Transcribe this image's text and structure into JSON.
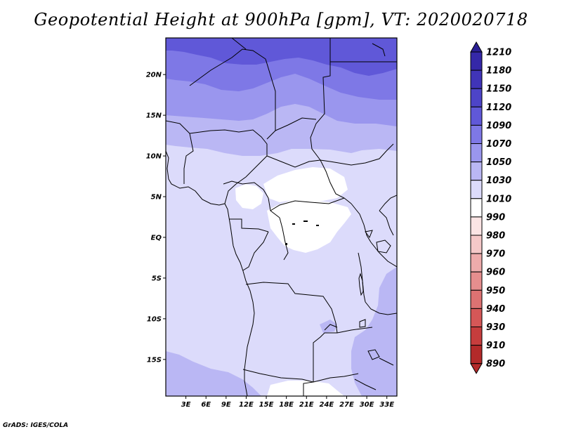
{
  "title": "Geopotential Height at 900hPa [gpm], VT: 2020020718",
  "credit": "GrADS: IGES/COLA",
  "map": {
    "lon_range": [
      0,
      34.5
    ],
    "lat_range": [
      -19.5,
      24.5
    ],
    "lat_ticks": [
      {
        "value": 20,
        "label": "20N"
      },
      {
        "value": 15,
        "label": "15N"
      },
      {
        "value": 10,
        "label": "10N"
      },
      {
        "value": 5,
        "label": "5N"
      },
      {
        "value": 0,
        "label": "EQ"
      },
      {
        "value": -5,
        "label": "5S"
      },
      {
        "value": -10,
        "label": "10S"
      },
      {
        "value": -15,
        "label": "15S"
      }
    ],
    "lon_ticks": [
      {
        "value": 3,
        "label": "3E"
      },
      {
        "value": 6,
        "label": "6E"
      },
      {
        "value": 9,
        "label": "9E"
      },
      {
        "value": 12,
        "label": "12E"
      },
      {
        "value": 15,
        "label": "15E"
      },
      {
        "value": 18,
        "label": "18E"
      },
      {
        "value": 21,
        "label": "21E"
      },
      {
        "value": 24,
        "label": "24E"
      },
      {
        "value": 27,
        "label": "27E"
      },
      {
        "value": 30,
        "label": "30E"
      },
      {
        "value": 33,
        "label": "33E"
      }
    ]
  },
  "colorbar": {
    "levels": [
      {
        "value": "1210",
        "color": "#2a1f94"
      },
      {
        "value": "1180",
        "color": "#3528a8"
      },
      {
        "value": "1150",
        "color": "#4034b8"
      },
      {
        "value": "1120",
        "color": "#4d44c8"
      },
      {
        "value": "1090",
        "color": "#6058d8"
      },
      {
        "value": "1070",
        "color": "#7e78e6"
      },
      {
        "value": "1050",
        "color": "#9a96ee"
      },
      {
        "value": "1030",
        "color": "#bab7f4"
      },
      {
        "value": "1010",
        "color": "#dcdbfb"
      },
      {
        "value": "990",
        "color": "#ffffff"
      },
      {
        "value": "980",
        "color": "#fbe4e4"
      },
      {
        "value": "970",
        "color": "#f5c8c8"
      },
      {
        "value": "960",
        "color": "#eeabab"
      },
      {
        "value": "950",
        "color": "#e68e8e"
      },
      {
        "value": "940",
        "color": "#dd7272"
      },
      {
        "value": "930",
        "color": "#d55757"
      },
      {
        "value": "910",
        "color": "#c63d3d"
      },
      {
        "value": "890",
        "color": "#b32a2a"
      }
    ],
    "top_color": "#2a1f94",
    "bottom_color": "#b32a2a"
  }
}
